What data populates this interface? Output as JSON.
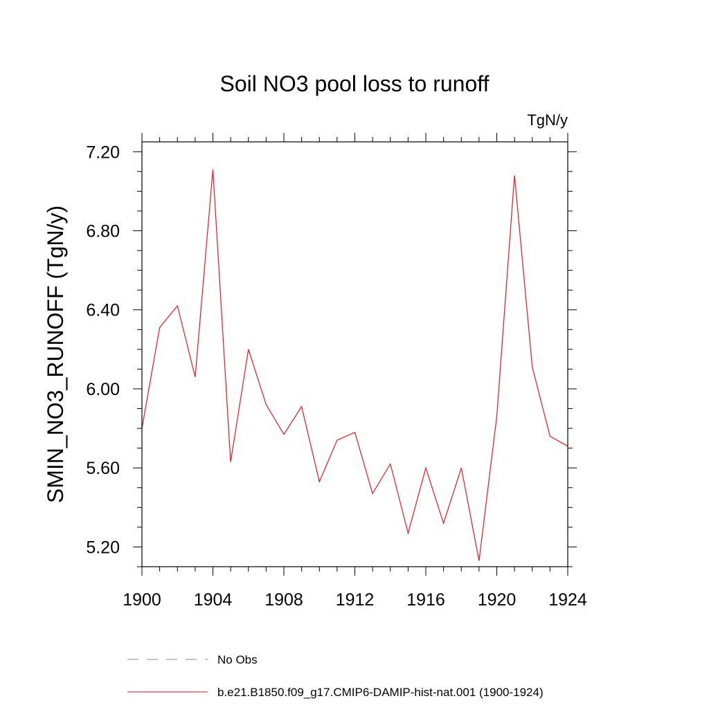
{
  "chart_data": {
    "type": "line",
    "title": "Soil NO3 pool loss to runoff",
    "units_label": "TgN/y",
    "ylabel": "SMIN_NO3_RUNOFF  (TgN/y)",
    "xlabel": "",
    "xlim": [
      1900,
      1924
    ],
    "ylim": [
      5.1,
      7.25
    ],
    "x_ticks": [
      "1900",
      "1904",
      "1908",
      "1912",
      "1916",
      "1920",
      "1924"
    ],
    "y_ticks": [
      "5.20",
      "5.60",
      "6.00",
      "6.40",
      "6.80",
      "7.20"
    ],
    "grid": false,
    "legend_position": "bottom",
    "legend": [
      {
        "label": "No Obs",
        "style": "dashed",
        "color": "#8080c0"
      },
      {
        "label": "b.e21.B1850.f09_g17.CMIP6-DAMIP-hist-nat.001 (1900-1924)",
        "style": "solid",
        "color": "#e8141c"
      }
    ],
    "series": [
      {
        "name": "b.e21.B1850.f09_g17.CMIP6-DAMIP-hist-nat.001 (1900-1924)",
        "color": "#e8141c",
        "x": [
          1900,
          1901,
          1902,
          1903,
          1904,
          1905,
          1906,
          1907,
          1908,
          1909,
          1910,
          1911,
          1912,
          1913,
          1914,
          1915,
          1916,
          1917,
          1918,
          1919,
          1920,
          1921,
          1922,
          1923,
          1924
        ],
        "y": [
          5.8,
          6.31,
          6.42,
          6.06,
          7.11,
          5.63,
          6.2,
          5.92,
          5.77,
          5.91,
          5.53,
          5.74,
          5.78,
          5.47,
          5.62,
          5.27,
          5.6,
          5.32,
          5.6,
          5.13,
          5.86,
          7.08,
          6.11,
          5.76,
          5.71
        ]
      }
    ]
  }
}
